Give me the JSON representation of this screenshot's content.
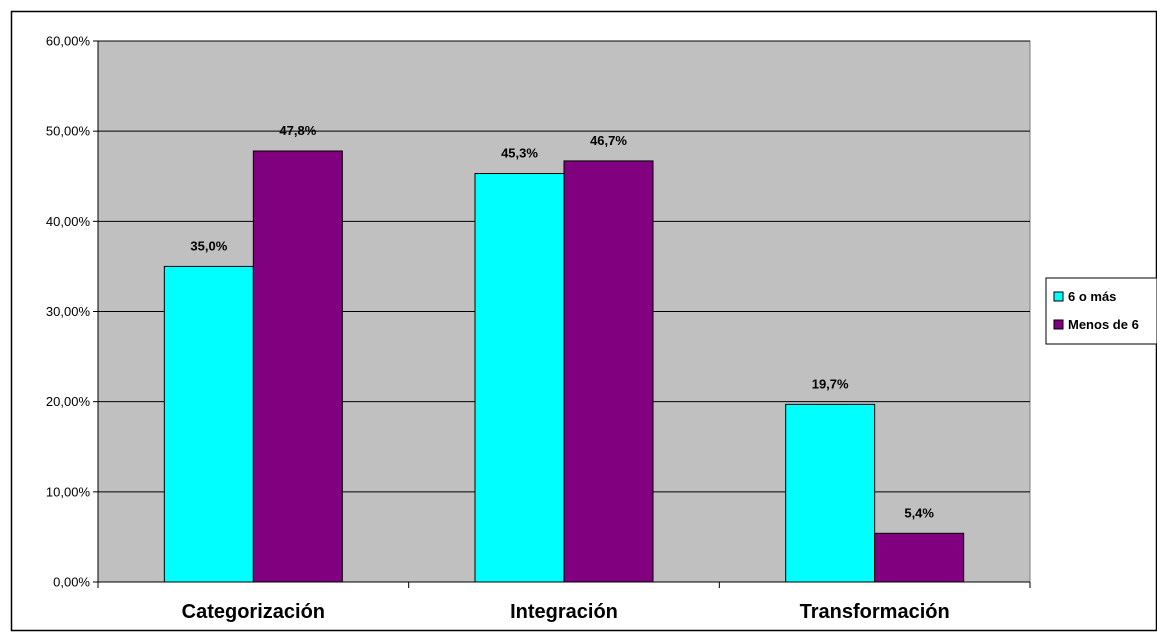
{
  "chart_data": {
    "type": "bar",
    "categories": [
      "Categorización",
      "Integración",
      "Transformación"
    ],
    "series": [
      {
        "name": "6 o más",
        "values": [
          35.0,
          45.3,
          19.7
        ],
        "labels": [
          "35,0%",
          "45,3%",
          "19,7%"
        ],
        "color": "#00FFFF"
      },
      {
        "name": "Menos de 6",
        "values": [
          47.8,
          46.7,
          5.4
        ],
        "labels": [
          "47,8%",
          "46,7%",
          "5,4%"
        ],
        "color": "#800080"
      }
    ],
    "ylim": [
      0,
      60
    ],
    "yticks": [
      0,
      10,
      20,
      30,
      40,
      50,
      60
    ],
    "ytick_labels": [
      "0,00%",
      "10,00%",
      "20,00%",
      "30,00%",
      "40,00%",
      "50,00%",
      "60,00%"
    ],
    "grid": true,
    "plot_background": "#C0C0C0",
    "legend_position": "right"
  }
}
